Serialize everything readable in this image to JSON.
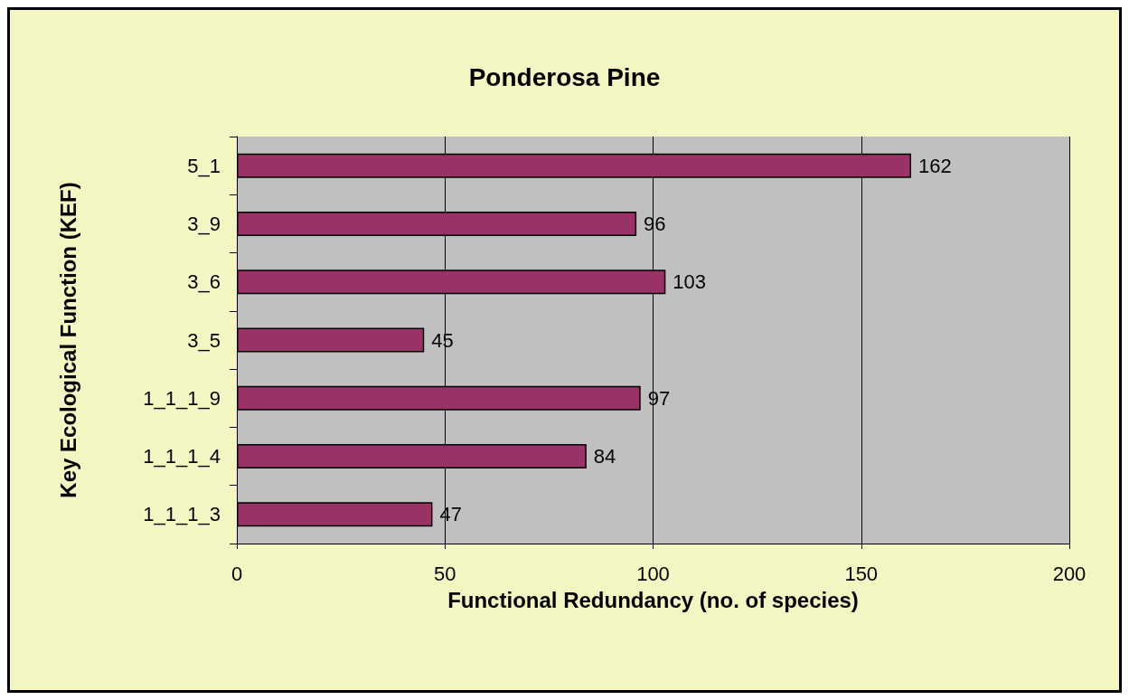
{
  "chart_data": {
    "type": "bar",
    "title": "Ponderosa Pine",
    "xlabel": "Functional Redundancy (no. of species)",
    "ylabel": "Key Ecological Function (KEF)",
    "categories": [
      "5_1",
      "3_9",
      "3_6",
      "3_5",
      "1_1_1_9",
      "1_1_1_4",
      "1_1_1_3"
    ],
    "values": [
      162,
      96,
      103,
      45,
      97,
      84,
      47
    ],
    "color": "#993366",
    "orientation": "horizontal",
    "xlim": [
      0,
      200
    ],
    "xticks": [
      0,
      50,
      100,
      150,
      200
    ],
    "grid": "x",
    "data_labels": true
  }
}
